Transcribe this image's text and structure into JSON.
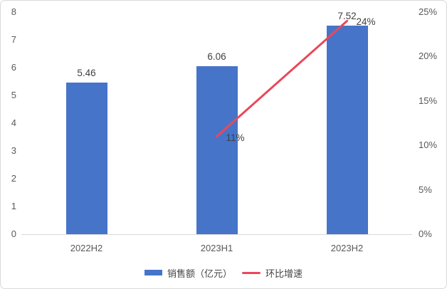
{
  "chart_data": {
    "type": "combo",
    "title": "",
    "categories": [
      "2022H2",
      "2023H1",
      "2023H2"
    ],
    "series": [
      {
        "name": "销售额（亿元）",
        "type": "bar",
        "axis": "left",
        "color": "#4674C9",
        "values": [
          5.46,
          6.06,
          7.52
        ],
        "data_labels": [
          "5.46",
          "6.06",
          "7.52"
        ]
      },
      {
        "name": "环比增速",
        "type": "line",
        "axis": "right",
        "color": "#E8495A",
        "values": [
          null,
          11,
          24
        ],
        "data_labels": [
          null,
          "11%",
          "24%"
        ]
      }
    ],
    "left_axis": {
      "min": 0,
      "max": 8,
      "tick_labels": [
        "0",
        "1",
        "2",
        "3",
        "4",
        "5",
        "6",
        "7",
        "8"
      ]
    },
    "right_axis": {
      "min": 0,
      "max": 25,
      "tick_labels": [
        "0%",
        "5%",
        "10%",
        "15%",
        "20%",
        "25%"
      ]
    },
    "grid": false,
    "legend_position": "bottom",
    "axis_line_color": "#d9d9d9"
  }
}
